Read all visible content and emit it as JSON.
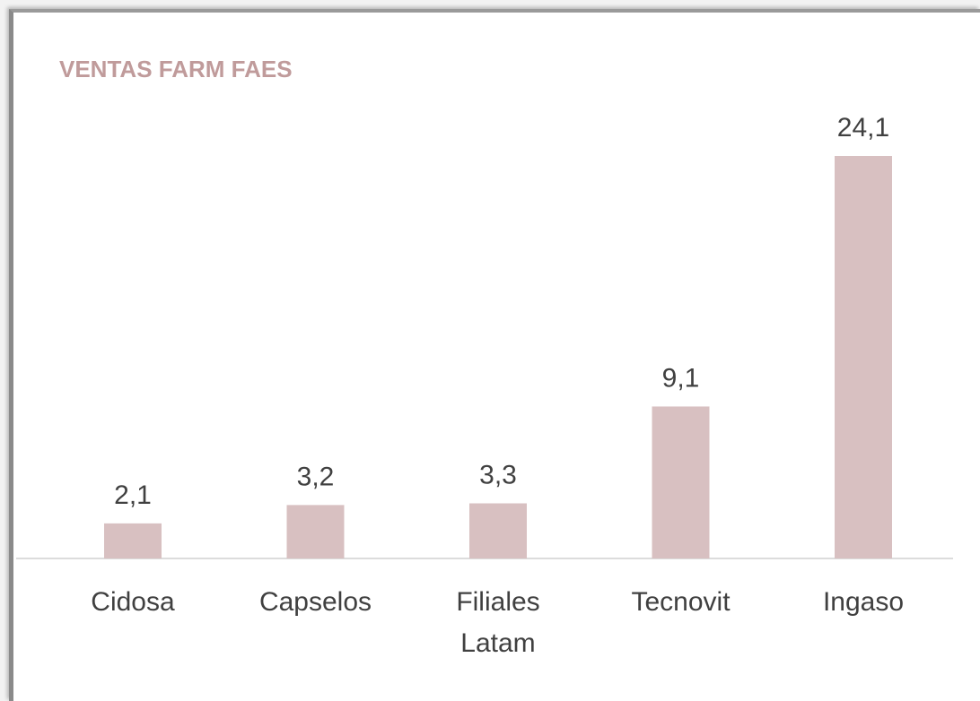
{
  "chart_data": {
    "type": "bar",
    "title": "VENTAS FARM FAES",
    "categories": [
      "Cidosa",
      "Capselos",
      "Filiales Latam",
      "Tecnovit",
      "Ingaso"
    ],
    "values": [
      2.1,
      3.2,
      3.3,
      9.1,
      24.1
    ],
    "value_labels": [
      "2,1",
      "3,2",
      "3,3",
      "9,1",
      "24,1"
    ],
    "color": "#d8c0c1"
  }
}
